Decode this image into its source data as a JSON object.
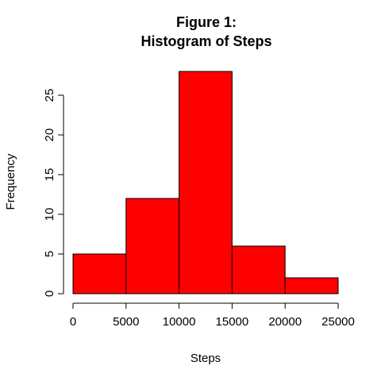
{
  "chart_data": {
    "type": "bar",
    "title": "Figure 1:",
    "subtitle": "Histogram of Steps",
    "xlabel": "Steps",
    "ylabel": "Frequency",
    "bins": [
      {
        "from": 0,
        "to": 5000,
        "value": 5
      },
      {
        "from": 5000,
        "to": 10000,
        "value": 12
      },
      {
        "from": 10000,
        "to": 15000,
        "value": 28
      },
      {
        "from": 15000,
        "to": 20000,
        "value": 6
      },
      {
        "from": 20000,
        "to": 25000,
        "value": 2
      }
    ],
    "xlim": [
      0,
      25000
    ],
    "ylim": [
      0,
      28
    ],
    "xticks": [
      "0",
      "5000",
      "10000",
      "15000",
      "20000",
      "25000"
    ],
    "yticks": [
      "0",
      "5",
      "10",
      "15",
      "20",
      "25"
    ],
    "bar_color": "#ff0000",
    "bar_edge_color": "#000000",
    "grid": false
  }
}
